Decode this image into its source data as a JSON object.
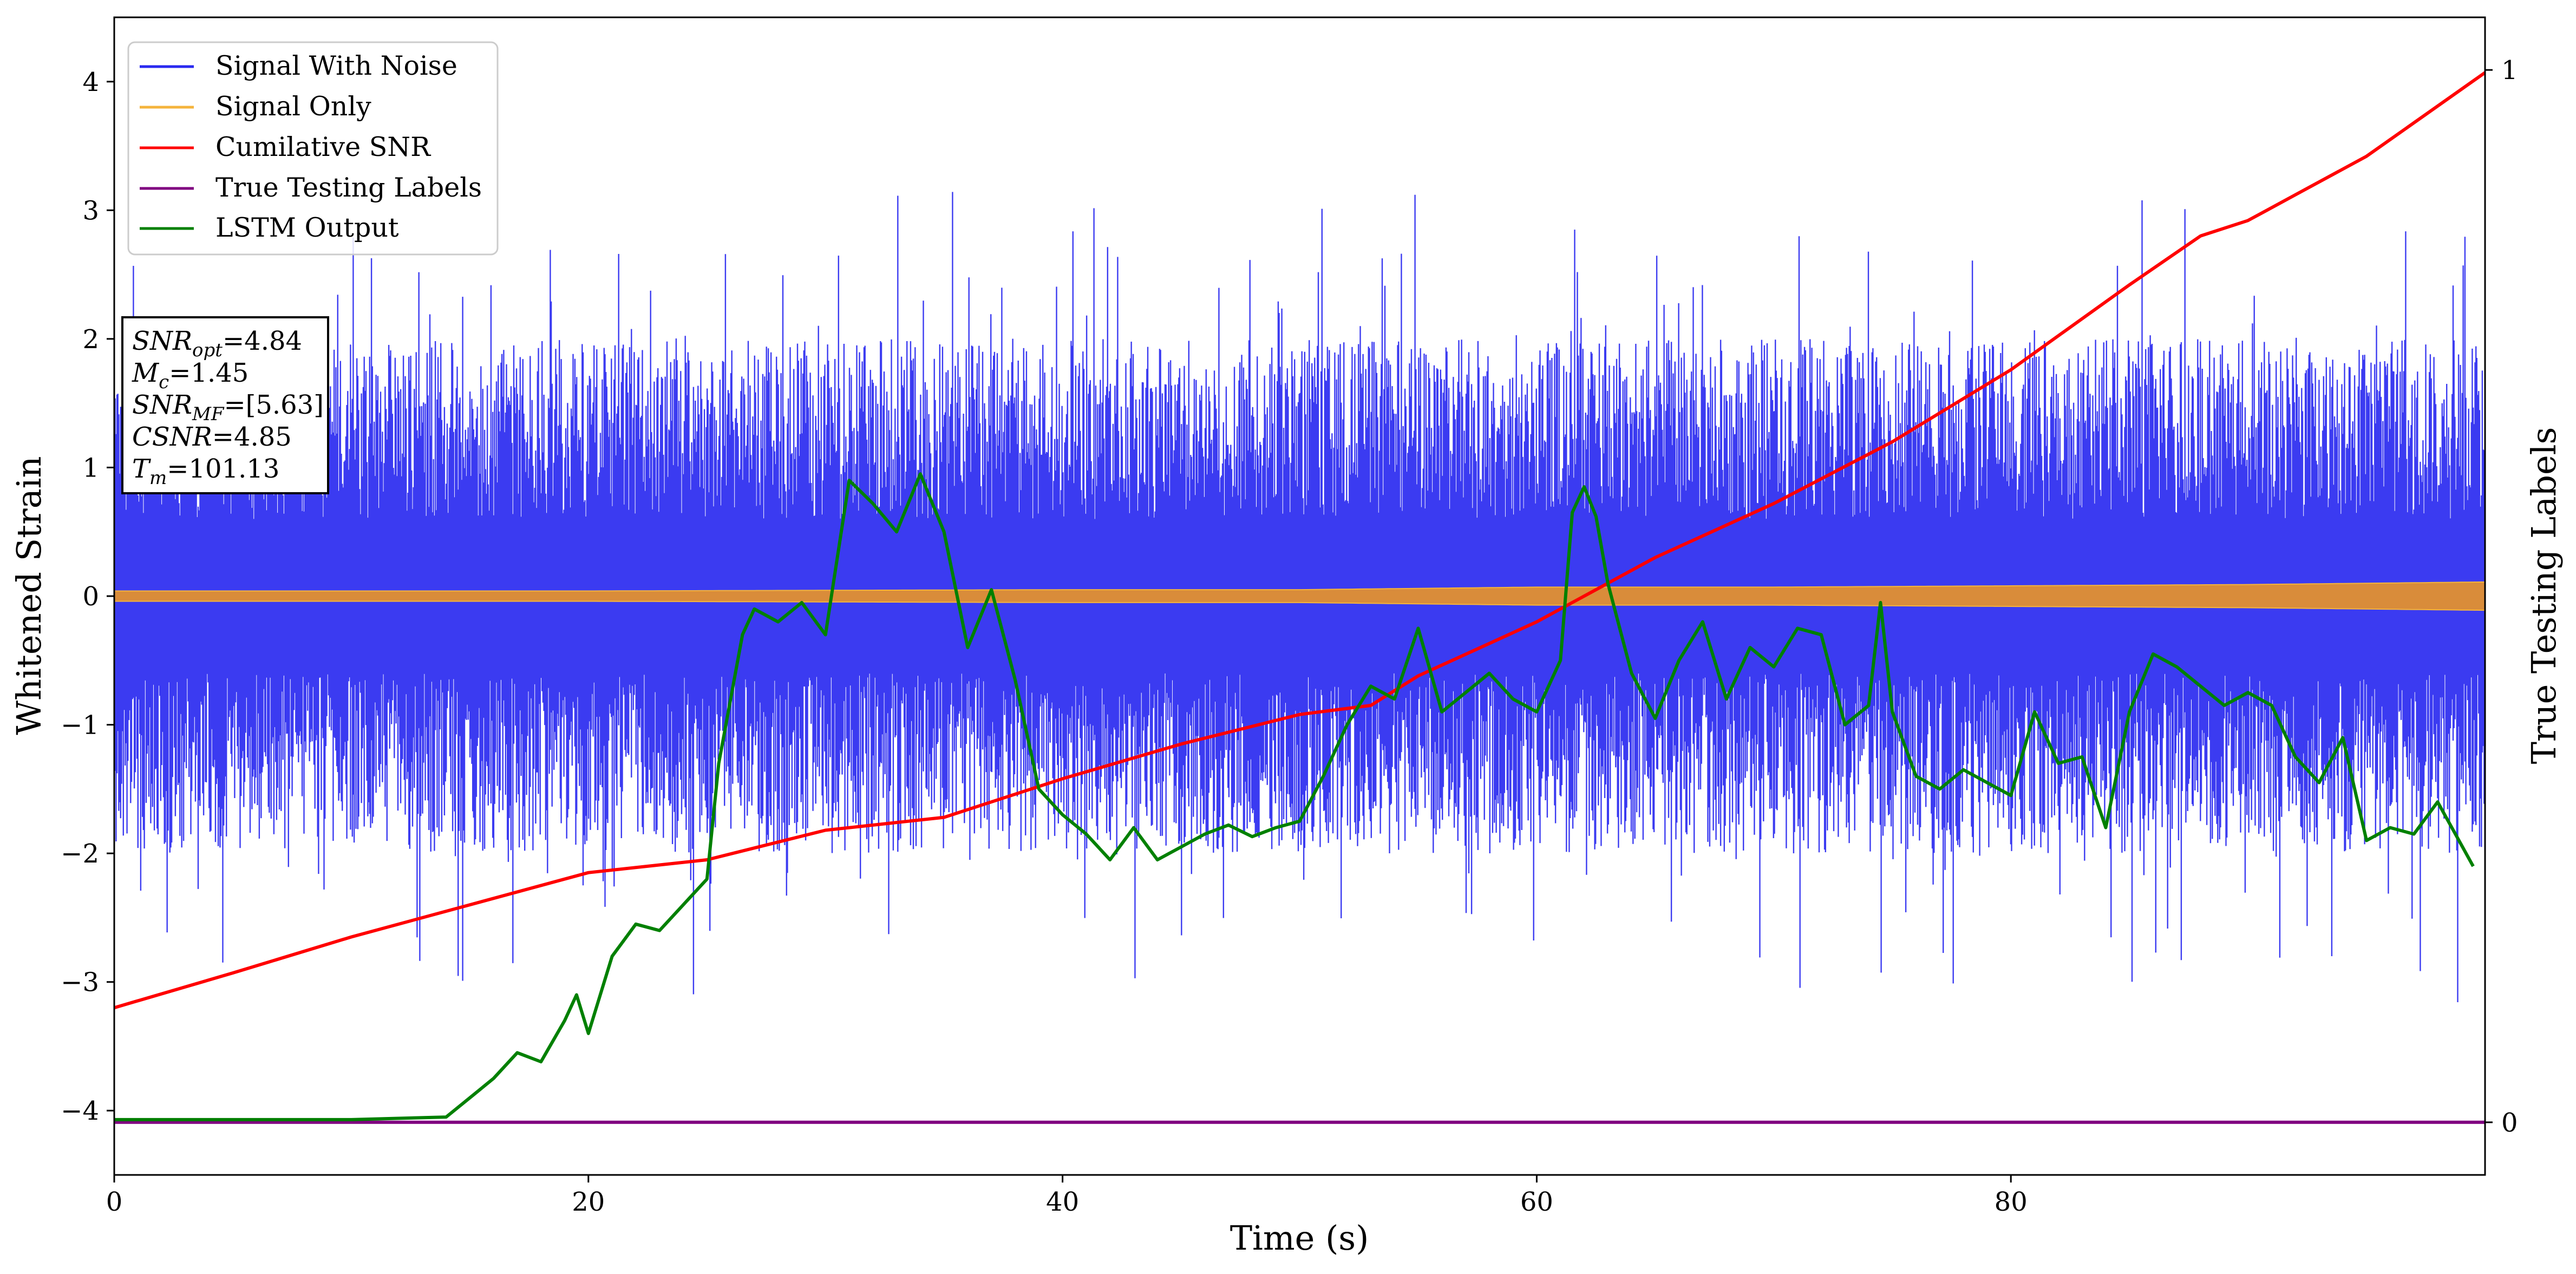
{
  "chart_data": {
    "type": "line",
    "xlabel": "Time (s)",
    "ylabel": "Whitened Strain",
    "ylabel_right": "True Testing Labels",
    "xlim": [
      0,
      100
    ],
    "ylim": [
      -4.5,
      4.5
    ],
    "ylim_right": [
      -0.05,
      1.05
    ],
    "x_ticks": [
      0,
      20,
      40,
      60,
      80
    ],
    "y_ticks": [
      4,
      3,
      2,
      1,
      0,
      -1,
      -2,
      -3,
      -4
    ],
    "y_tick_labels": [
      "4",
      "3",
      "2",
      "1",
      "0",
      "−1",
      "−2",
      "−3",
      "−4"
    ],
    "y_right_ticks": [
      1,
      0
    ],
    "grid": false,
    "legend_position": "top-left",
    "legend": [
      {
        "label": "Signal With Noise",
        "color": "#2a2af0"
      },
      {
        "label": "Signal Only",
        "color": "#f5b43c"
      },
      {
        "label": "Cumilative SNR",
        "color": "#ff0000"
      },
      {
        "label": "True Testing Labels",
        "color": "#800080"
      },
      {
        "label": "LSTM Output",
        "color": "#008000"
      }
    ],
    "annotation": [
      {
        "main": "SNR",
        "sub": "opt",
        "value": "=4.84"
      },
      {
        "main": "M",
        "sub": "c",
        "value": "=1.45"
      },
      {
        "main": "SNR",
        "sub": "MF",
        "value": "=[5.63]"
      },
      {
        "main": "CSNR",
        "sub": "",
        "value": "=4.85"
      },
      {
        "main": "T",
        "sub": "m",
        "value": "=101.13"
      }
    ],
    "series": [
      {
        "name": "Signal With Noise",
        "axis": "left",
        "style": "noise",
        "typical_range": [
          -2.0,
          2.0
        ],
        "max": 3.6,
        "min": -3.5
      },
      {
        "name": "Signal Only",
        "axis": "left",
        "style": "band",
        "x": [
          0,
          20,
          40,
          50,
          60,
          70,
          80,
          90,
          100
        ],
        "amplitude": [
          0.04,
          0.04,
          0.05,
          0.05,
          0.07,
          0.07,
          0.08,
          0.09,
          0.11
        ]
      },
      {
        "name": "Cumilative SNR",
        "axis": "left",
        "x": [
          0,
          5,
          10,
          15,
          20,
          25,
          30,
          35,
          40,
          45,
          50,
          53,
          55,
          60,
          65,
          70,
          75,
          80,
          85,
          88,
          90,
          92,
          95,
          100
        ],
        "y": [
          -3.2,
          -2.93,
          -2.65,
          -2.4,
          -2.15,
          -2.05,
          -1.82,
          -1.72,
          -1.42,
          -1.15,
          -0.92,
          -0.85,
          -0.62,
          -0.2,
          0.3,
          0.72,
          1.2,
          1.76,
          2.42,
          2.8,
          2.92,
          3.12,
          3.42,
          4.07
        ]
      },
      {
        "name": "True Testing Labels",
        "axis": "right",
        "x": [
          0,
          100
        ],
        "y": [
          0,
          0
        ]
      },
      {
        "name": "LSTM Output",
        "axis": "left",
        "x": [
          0,
          10,
          14,
          15,
          16,
          17,
          18,
          19,
          19.5,
          20,
          21,
          22,
          23,
          24,
          25,
          25.5,
          26,
          26.5,
          27,
          28,
          29,
          30,
          30.5,
          31,
          32,
          33,
          34,
          35,
          36,
          37,
          38,
          39,
          40,
          41,
          42,
          43,
          44,
          45,
          46,
          47,
          48,
          49,
          50,
          51,
          52,
          53,
          54,
          55,
          56,
          57,
          58,
          59,
          60,
          61,
          61.5,
          62,
          62.5,
          63,
          64,
          65,
          66,
          67,
          68,
          69,
          70,
          71,
          72,
          73,
          74,
          74.5,
          75,
          76,
          77,
          78,
          79,
          80,
          81,
          82,
          83,
          84,
          85,
          86,
          87,
          88,
          89,
          90,
          91,
          92,
          93,
          94,
          95,
          96,
          97,
          98,
          99.5
        ],
        "y": [
          -4.07,
          -4.07,
          -4.05,
          -3.9,
          -3.75,
          -3.55,
          -3.62,
          -3.3,
          -3.1,
          -3.4,
          -2.8,
          -2.55,
          -2.6,
          -2.4,
          -2.2,
          -1.3,
          -0.8,
          -0.3,
          -0.1,
          -0.2,
          -0.05,
          -0.3,
          0.3,
          0.9,
          0.72,
          0.5,
          0.95,
          0.5,
          -0.4,
          0.05,
          -0.65,
          -1.5,
          -1.7,
          -1.85,
          -2.05,
          -1.8,
          -2.05,
          -1.95,
          -1.85,
          -1.78,
          -1.87,
          -1.8,
          -1.75,
          -1.4,
          -1.0,
          -0.7,
          -0.8,
          -0.25,
          -0.9,
          -0.75,
          -0.6,
          -0.8,
          -0.9,
          -0.5,
          0.65,
          0.85,
          0.62,
          0.1,
          -0.6,
          -0.95,
          -0.5,
          -0.2,
          -0.8,
          -0.4,
          -0.55,
          -0.25,
          -0.3,
          -1.0,
          -0.85,
          -0.05,
          -0.9,
          -1.4,
          -1.5,
          -1.35,
          -1.45,
          -1.55,
          -0.9,
          -1.3,
          -1.25,
          -1.8,
          -0.9,
          -0.45,
          -0.55,
          -0.7,
          -0.85,
          -0.75,
          -0.85,
          -1.25,
          -1.45,
          -1.1,
          -1.9,
          -1.8,
          -1.85,
          -1.6,
          -2.1
        ]
      }
    ]
  }
}
